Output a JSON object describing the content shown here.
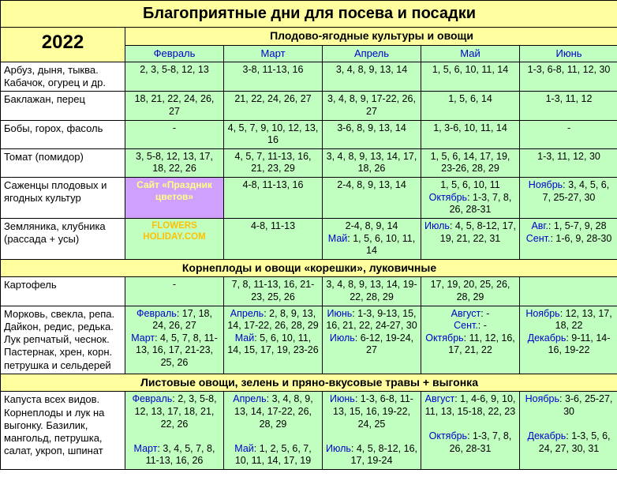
{
  "title": "Благоприятные дни для посева и посадки",
  "year": "2022",
  "section1": "Плодово-ягодные культуры и овощи",
  "section2": "Корнеплоды и овощи «корешки», луковичные",
  "section3": "Листовые овощи, зелень и пряно-вкусовые травы + выгонка",
  "months": {
    "m1": "Февраль",
    "m2": "Март",
    "m3": "Апрель",
    "m4": "Май",
    "m5": "Июнь"
  },
  "r1": {
    "label": "Арбуз, дыня, тыква. Кабачок, огурец и др.",
    "c1": "2, 3, 5-8, 12, 13",
    "c2": "3-8, 11-13, 16",
    "c3": "3, 4, 8, 9, 13, 14",
    "c4": "1, 5, 6, 10, 11, 14",
    "c5": "1-3, 6-8, 11, 12, 30"
  },
  "r2": {
    "label": "Баклажан, перец",
    "c1": "18, 21, 22, 24, 26, 27",
    "c2": "21, 22, 24, 26, 27",
    "c3": "3, 4, 8, 9, 17-22, 26, 27",
    "c4": "1, 5, 6, 14",
    "c5": "1-3, 11, 12"
  },
  "r3": {
    "label": "Бобы, горох, фасоль",
    "c1": "-",
    "c2": "4, 5, 7, 9, 10, 12, 13, 16",
    "c3": "3-6, 8, 9, 13, 14",
    "c4": "1, 3-6, 10, 11, 14",
    "c5": "-"
  },
  "r4": {
    "label": "Томат (помидор)",
    "c1": "3, 5-8, 12, 13, 17, 18, 22, 26",
    "c2": "4, 5, 7, 11-13, 16, 21, 23, 29",
    "c3": "3, 4, 8, 9, 13, 14, 17, 18, 26",
    "c4": "1, 5, 6, 14, 17, 19, 23-26, 28, 29",
    "c5": "1-3, 11, 12, 30"
  },
  "r5": {
    "label": "Саженцы плодовых и ягодных культур",
    "wm": "Сайт «Праздник цветов»",
    "c2": "4-8, 11-13, 16",
    "c3": "2-4, 8, 9, 13, 14",
    "c4a": "1, 5, 6, 10, 11",
    "c4b_m": "Октябрь",
    "c4b": ": 1-3, 7, 8, 26, 28-31",
    "c5_m": "Ноябрь",
    "c5": ": 3, 4, 5, 6, 7, 25-27, 30"
  },
  "r6": {
    "label": "Земляника, клубника (рассада + усы)",
    "wm": "FLOWERS HOLIDAY.COM",
    "c2": "4-8, 11-13",
    "c3a": "2-4, 8, 9, 14",
    "c3b_m": "Май",
    "c3b": ": 1, 5, 6, 10, 11, 14",
    "c4_m": "Июль",
    "c4": ": 4, 5, 8-12, 17, 19, 21, 22, 31",
    "c5a_m": "Авг.",
    "c5a": ": 1, 5-7, 9, 28",
    "c5b_m": "Сент.",
    "c5b": ": 1-6, 9, 28-30"
  },
  "r7": {
    "label": "Картофель",
    "c1": "-",
    "c2": "7, 8, 11-13, 16, 21-23, 25, 26",
    "c3": "3, 4, 8, 9, 13, 14, 19-22, 28, 29",
    "c4": "17, 19, 20, 25, 26, 28, 29",
    "c5": ""
  },
  "r8": {
    "label": "Морковь, свекла, репа. Дайкон, редис, редька. Лук репчатый, чеснок. Пастернак, хрен, корн. петрушка и сельдерей",
    "c1a_m": "Февраль",
    "c1a": ": 17, 18, 24, 26, 27",
    "c1b_m": "Март",
    "c1b": ": 4, 5, 7, 8, 11-13, 16, 17, 21-23, 25, 26",
    "c2a_m": "Апрель",
    "c2a": ": 2, 8, 9, 13, 14, 17-22, 26, 28, 29",
    "c2b_m": "Май",
    "c2b": ": 5, 6, 10, 11, 14, 15, 17, 19, 23-26",
    "c3a_m": "Июнь",
    "c3a": ": 1-3, 9-13, 15, 16, 21, 22, 24-27, 30",
    "c3b_m": "Июль",
    "c3b": ": 6-12, 19-24, 27",
    "c4a_m": "Август",
    "c4a": ": -",
    "c4b_m": "Сент.",
    "c4b": ": -",
    "c4c_m": "Октябрь",
    "c4c": ": 11, 12, 16, 17, 21, 22",
    "c5a_m": "Ноябрь",
    "c5a": ": 12, 13, 17, 18, 22",
    "c5b_m": "Декабрь",
    "c5b": ": 9-11, 14-16, 19-22"
  },
  "r9": {
    "label": "Капуста всех видов. Корнеплоды и лук на выгонку. Базилик, мангольд, петрушка, салат, укроп, шпинат",
    "c1a_m": "Февраль",
    "c1a": ": 2, 3, 5-8, 12, 13, 17, 18, 21, 22, 26",
    "c1b_m": "Март",
    "c1b": ": 3, 4, 5, 7, 8, 11-13, 16, 26",
    "c2a_m": "Апрель",
    "c2a": ": 3, 4, 8, 9, 13, 14, 17-22, 26, 28, 29",
    "c2b_m": "Май",
    "c2b": ": 1, 2, 5, 6, 7, 10, 11, 14, 17, 19",
    "c3a_m": "Июнь",
    "c3a": ": 1-3, 6-8, 11-13, 15, 16, 19-22, 24, 25",
    "c3b_m": "Июль",
    "c3b": ": 4, 5, 8-12, 16, 17, 19-24",
    "c4a_m": "Август",
    "c4a": ": 1, 4-6, 9, 10, 11, 13, 15-18, 22, 23",
    "c4b_m": "Октябрь",
    "c4b": ": 1-3, 7, 8, 26, 28-31",
    "c5a_m": "Ноябрь",
    "c5a": ": 3-6, 25-27, 30",
    "c5b_m": "Декабрь",
    "c5b": ": 1-3, 5, 6, 24, 27, 30, 31"
  }
}
